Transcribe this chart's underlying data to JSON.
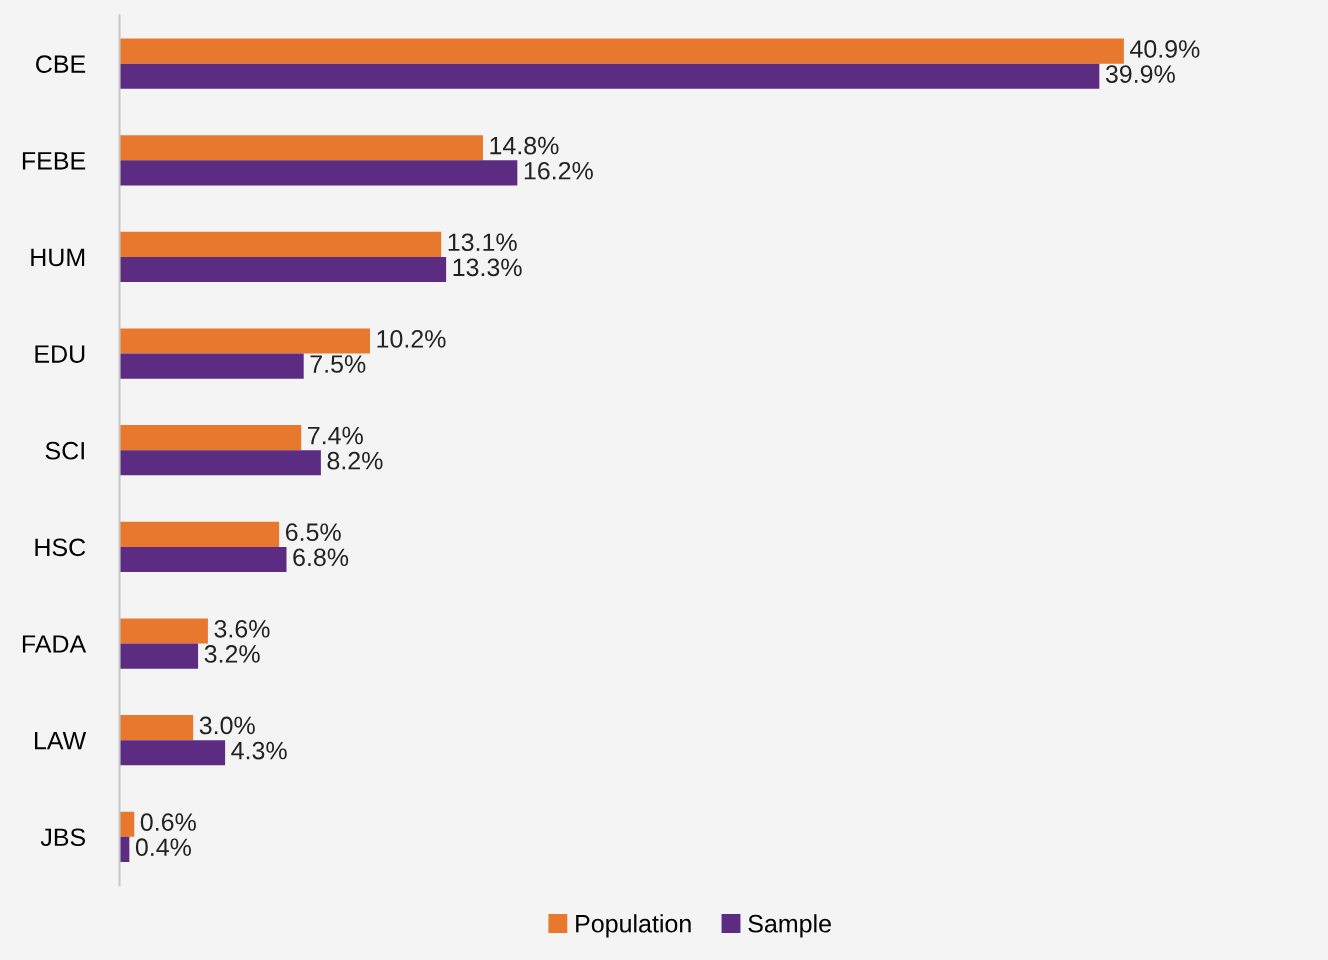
{
  "chart_data": {
    "type": "bar",
    "orientation": "horizontal",
    "categories": [
      "CBE",
      "FEBE",
      "HUM",
      "EDU",
      "SCI",
      "HSC",
      "FADA",
      "LAW",
      "JBS"
    ],
    "series": [
      {
        "name": "Population",
        "color": "#e8782e",
        "values": [
          40.9,
          14.8,
          13.1,
          10.2,
          7.4,
          6.5,
          3.6,
          3.0,
          0.6
        ],
        "value_labels": [
          "40.9%",
          "14.8%",
          "13.1%",
          "10.2%",
          "7.4%",
          "6.5%",
          "3.6%",
          "3.0%",
          "0.6%"
        ]
      },
      {
        "name": "Sample",
        "color": "#5b2c82",
        "values": [
          39.9,
          16.2,
          13.3,
          7.5,
          8.2,
          6.8,
          3.2,
          4.3,
          0.4
        ],
        "value_labels": [
          "39.9%",
          "16.2%",
          "13.3%",
          "7.5%",
          "8.2%",
          "6.8%",
          "3.2%",
          "4.3%",
          "0.4%"
        ]
      }
    ],
    "legend": "bottom",
    "grid": false
  }
}
